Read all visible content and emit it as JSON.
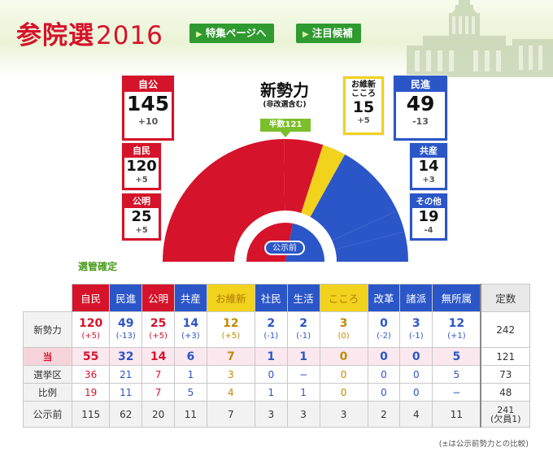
{
  "header": {
    "title_jp": "参院選",
    "title_year": "2016",
    "btn_special": "特集ページへ",
    "btn_candidates": "注目候補"
  },
  "summary": {
    "title": "新勢力",
    "subtitle": "(非改選含む)",
    "half_label": "半数121",
    "center_label": "公示前",
    "jiko": {
      "name": "自公",
      "num": "145",
      "diff": "+10"
    },
    "jimin": {
      "name": "自民",
      "num": "120",
      "diff": "+5"
    },
    "komei": {
      "name": "公明",
      "num": "25",
      "diff": "+5"
    },
    "oishin": {
      "name": "お維新\nこころ",
      "name1": "お維新",
      "name2": "こころ",
      "num": "15",
      "diff": "+5"
    },
    "minshin": {
      "name": "民進",
      "num": "49",
      "diff": "-13"
    },
    "kyosan": {
      "name": "共産",
      "num": "14",
      "diff": "+3"
    },
    "other": {
      "name": "その他",
      "num": "19",
      "diff": "-4"
    }
  },
  "chart_data": {
    "type": "pie",
    "categories": [
      "自民",
      "公明",
      "お維新・こころ",
      "民進",
      "共産",
      "その他"
    ],
    "values": [
      120,
      25,
      15,
      49,
      14,
      19
    ],
    "colors": [
      "#d5132a",
      "#d5132a",
      "#f1d21d",
      "#2b56c8",
      "#2b56c8",
      "#2b56c8"
    ],
    "total": 242
  },
  "kanri_label": "選管確定",
  "table": {
    "headers": [
      "自民",
      "民進",
      "公明",
      "共産",
      "お維新",
      "社民",
      "生活",
      "こころ",
      "改革",
      "諸派",
      "無所属",
      "定数"
    ],
    "rows": [
      {
        "label": "新勢力",
        "values": [
          "120",
          "49",
          "25",
          "14",
          "12",
          "2",
          "2",
          "3",
          "0",
          "3",
          "12",
          "242"
        ],
        "diffs": [
          "(+5)",
          "(-13)",
          "(+5)",
          "(+3)",
          "(+5)",
          "(-1)",
          "(-1)",
          "(0)",
          "(-2)",
          "(-1)",
          "(+1)",
          ""
        ]
      },
      {
        "label": "当",
        "values": [
          "55",
          "32",
          "14",
          "6",
          "7",
          "1",
          "1",
          "0",
          "0",
          "0",
          "5",
          "121"
        ]
      },
      {
        "label": "選挙区",
        "values": [
          "36",
          "21",
          "7",
          "1",
          "3",
          "0",
          "−",
          "0",
          "0",
          "0",
          "5",
          "73"
        ]
      },
      {
        "label": "比例",
        "values": [
          "19",
          "11",
          "7",
          "5",
          "4",
          "1",
          "1",
          "0",
          "0",
          "0",
          "−",
          "48"
        ]
      },
      {
        "label": "公示前",
        "values": [
          "115",
          "62",
          "20",
          "11",
          "7",
          "3",
          "3",
          "3",
          "2",
          "4",
          "11"
        ],
        "teisu1": "241",
        "teisu2": "(欠員1)"
      }
    ]
  },
  "footnote": "(±は公示前勢力との比較)"
}
